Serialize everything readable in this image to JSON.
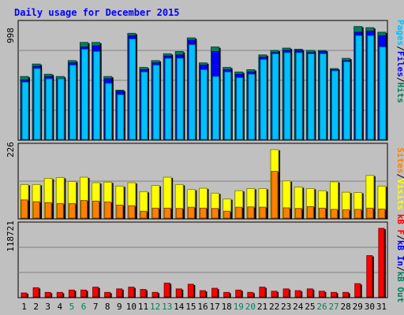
{
  "chart_data": {
    "type": "bar",
    "title": "Daily usage for December 2015",
    "categories": [
      "1",
      "2",
      "3",
      "4",
      "5",
      "6",
      "7",
      "8",
      "9",
      "10",
      "11",
      "12",
      "13",
      "14",
      "15",
      "16",
      "17",
      "18",
      "19",
      "20",
      "21",
      "22",
      "23",
      "24",
      "25",
      "26",
      "27",
      "28",
      "29",
      "30",
      "31"
    ],
    "weekend_days": [
      "5",
      "6",
      "12",
      "13",
      "19",
      "20",
      "26",
      "27"
    ],
    "grid": true,
    "panels": [
      {
        "id": "hits-files-pages",
        "max_label": "998",
        "ylim": [
          0,
          998
        ],
        "legend": [
          "Pages",
          "/",
          "Files",
          "/",
          "Hits"
        ],
        "series": [
          {
            "name": "Hits",
            "color": "#00805c",
            "values": [
              560,
              670,
              580,
              560,
              700,
              860,
              860,
              560,
              440,
              940,
              640,
              700,
              760,
              780,
              900,
              680,
              820,
              640,
              600,
              620,
              750,
              790,
              810,
              800,
              790,
              790,
              630,
              720,
              1000,
              990,
              950
            ]
          },
          {
            "name": "Files",
            "color": "#0000ff",
            "values": [
              530,
              650,
              560,
              540,
              680,
              820,
              830,
              540,
              430,
              920,
              620,
              680,
              740,
              750,
              880,
              660,
              780,
              620,
              580,
              600,
              730,
              770,
              790,
              790,
              770,
              780,
              620,
              700,
              950,
              960,
              920
            ]
          },
          {
            "name": "Pages",
            "color": "#00c0ff",
            "values": [
              510,
              630,
              540,
              540,
              660,
              800,
              780,
              500,
              400,
              890,
              600,
              660,
              720,
              720,
              840,
              620,
              560,
              600,
              550,
              580,
              710,
              760,
              770,
              770,
              760,
              760,
              610,
              690,
              920,
              920,
              820
            ]
          }
        ]
      },
      {
        "id": "visits-sites",
        "max_label": "226",
        "ylim": [
          0,
          226
        ],
        "legend": [
          "Sites",
          "/",
          "Visits"
        ],
        "series": [
          {
            "name": "Visits",
            "color": "#ffff00",
            "values": [
              112,
              112,
              132,
              135,
              122,
              136,
              118,
              120,
              107,
              118,
              89,
              109,
              136,
              112,
              96,
              100,
              84,
              65,
              92,
              99,
              99,
              226,
              124,
              104,
              99,
              92,
              121,
              87,
              86,
              142,
              107
            ]
          },
          {
            "name": "Sites",
            "color": "#ff8000",
            "values": [
              62,
              56,
              53,
              50,
              50,
              60,
              58,
              55,
              45,
              43,
              25,
              35,
              35,
              34,
              38,
              35,
              34,
              25,
              38,
              39,
              38,
              155,
              36,
              34,
              40,
              35,
              31,
              30,
              31,
              35,
              32
            ]
          }
        ]
      },
      {
        "id": "kbytes",
        "max_label": "118721",
        "ylim": [
          0,
          118721
        ],
        "legend": [
          "kB F",
          "/",
          "kB In",
          "/",
          "kB Out"
        ],
        "series": [
          {
            "name": "kB F",
            "color": "#ff0000",
            "values": [
              8000,
              17000,
              9000,
              9000,
              13000,
              13000,
              18000,
              9000,
              15000,
              18000,
              14000,
              9000,
              25000,
              15000,
              23000,
              12000,
              16000,
              9000,
              13000,
              9000,
              18000,
              11000,
              15000,
              12000,
              15000,
              11000,
              9000,
              9000,
              24000,
              72000,
              118721
            ]
          }
        ]
      }
    ]
  }
}
